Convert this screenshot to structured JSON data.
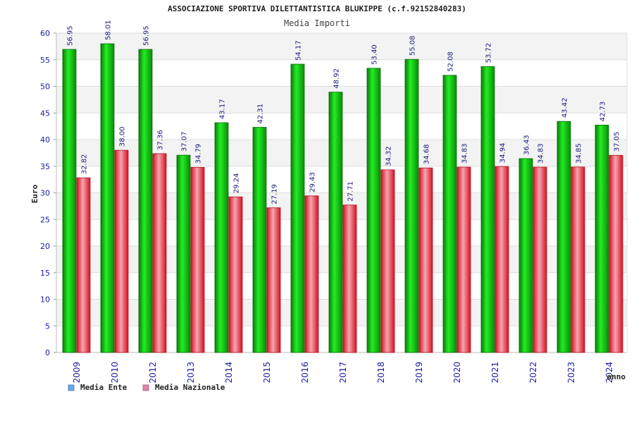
{
  "chart_data": {
    "type": "bar",
    "title": "ASSOCIAZIONE SPORTIVA DILETTANTISTICA BLUKIPPE (c.f.92152840283)",
    "subtitle": "Media Importi",
    "xlabel": "anno",
    "ylabel": "Euro",
    "ylim": [
      0,
      60
    ],
    "yticks": [
      0,
      5,
      10,
      15,
      20,
      25,
      30,
      35,
      40,
      45,
      50,
      55,
      60
    ],
    "grid": true,
    "categories": [
      "2009",
      "2010",
      "2012",
      "2013",
      "2014",
      "2015",
      "2016",
      "2017",
      "2018",
      "2019",
      "2020",
      "2021",
      "2022",
      "2023",
      "2024"
    ],
    "series": [
      {
        "name": "Media Ente",
        "legend_color": "#66aaee",
        "values": [
          56.95,
          58.01,
          56.95,
          37.07,
          43.17,
          42.31,
          54.17,
          48.92,
          53.4,
          55.08,
          52.08,
          53.72,
          36.43,
          43.42,
          42.73
        ],
        "labels": [
          "56.95",
          "58.01",
          "56.95",
          "37.07",
          "43.17",
          "42.31",
          "54.17",
          "48.92",
          "53.40",
          "55.08",
          "52.08",
          "53.72",
          "36.43",
          "43.42",
          "42.73"
        ]
      },
      {
        "name": "Media Nazionale",
        "legend_color": "#dd88aa",
        "values": [
          32.82,
          38.0,
          37.36,
          34.79,
          29.24,
          27.19,
          29.43,
          27.71,
          34.32,
          34.68,
          34.83,
          34.94,
          34.83,
          34.85,
          37.05
        ],
        "labels": [
          "32.82",
          "38.00",
          "37.36",
          "34.79",
          "29.24",
          "27.19",
          "29.43",
          "27.71",
          "34.32",
          "34.68",
          "34.83",
          "34.94",
          "34.83",
          "34.85",
          "37.05"
        ]
      }
    ]
  },
  "legend": {
    "items": [
      "Media Ente",
      "Media Nazionale"
    ]
  }
}
